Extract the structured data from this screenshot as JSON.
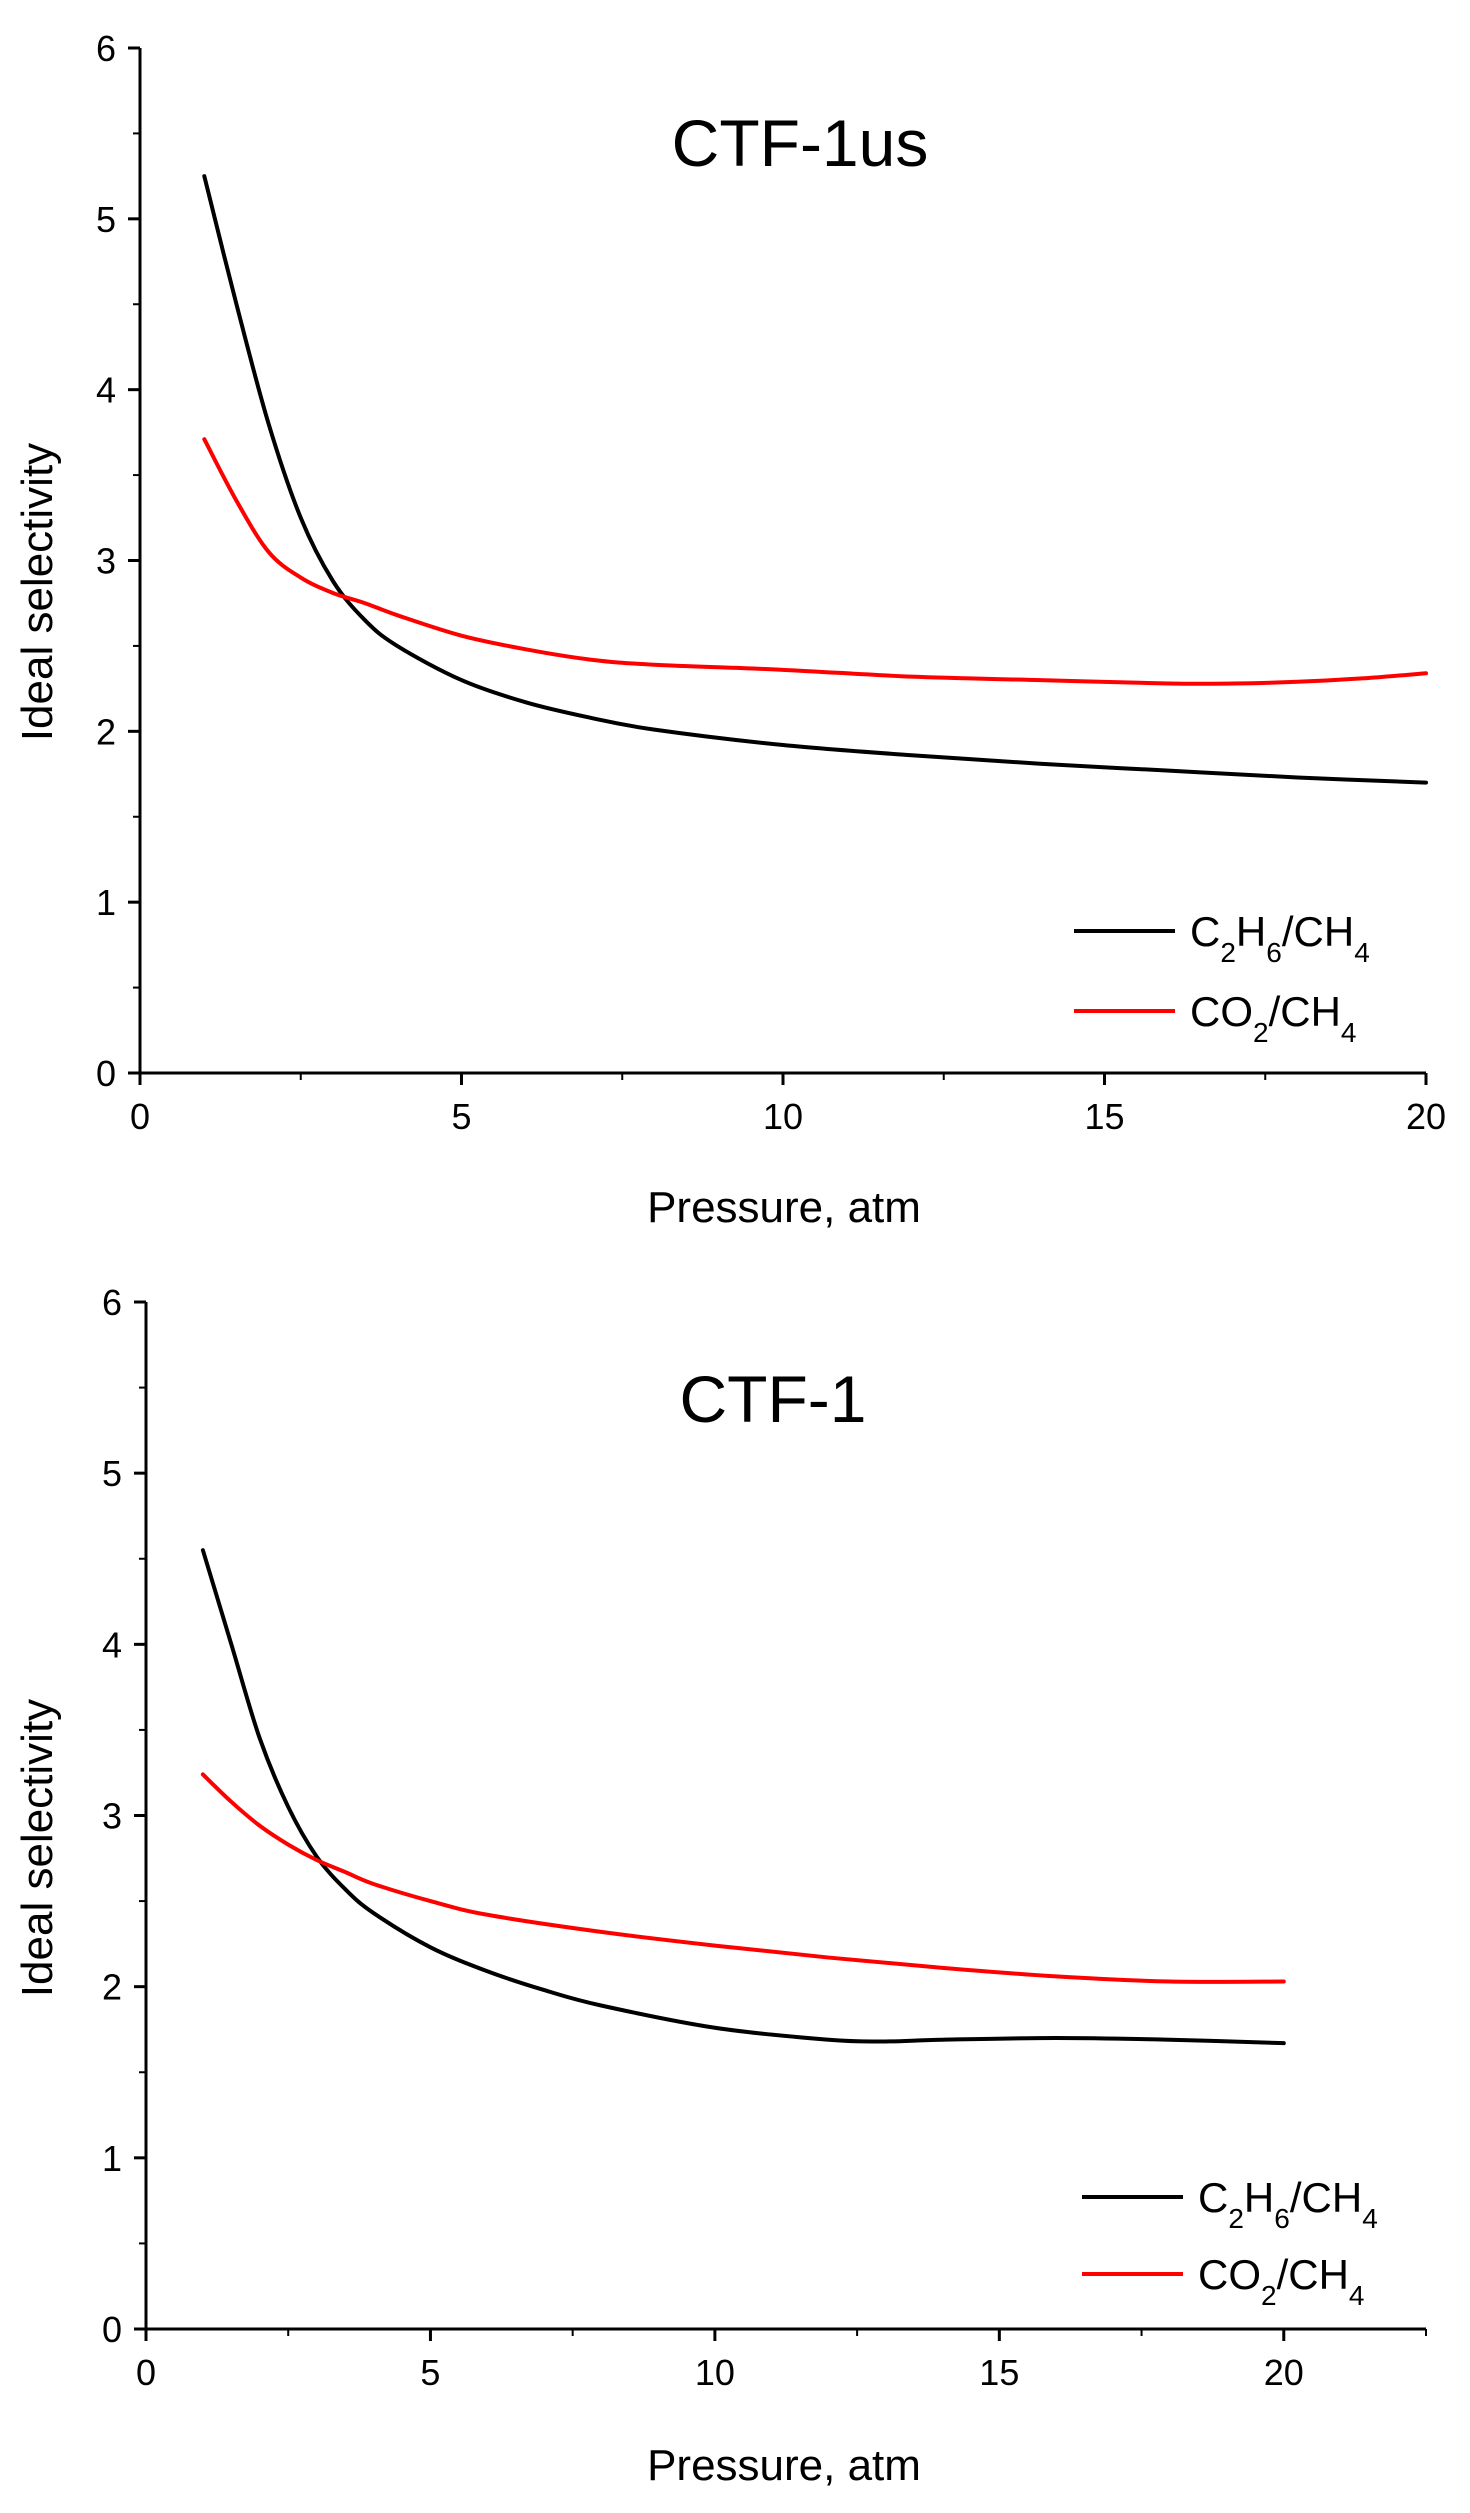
{
  "chart_data": [
    {
      "type": "line",
      "title": "CTF-1us",
      "xlabel": "Pressure, atm",
      "ylabel": "Ideal selectivity",
      "xlim": [
        0,
        20
      ],
      "ylim": [
        0,
        6
      ],
      "xticks": [
        0,
        5,
        10,
        15,
        20
      ],
      "yticks": [
        0,
        1,
        2,
        3,
        4,
        5,
        6
      ],
      "legend_position": "bottom-right",
      "series": [
        {
          "name": "C2H6/CH4",
          "label_main": "C",
          "sub1": "2",
          "label_mid": "H",
          "sub2": "6",
          "label_tail": "/CH",
          "sub3": "4",
          "color": "#000000",
          "x": [
            1,
            1.5,
            2,
            2.5,
            3,
            3.5,
            4,
            5,
            6,
            7,
            8,
            10,
            12,
            14,
            16,
            18,
            20
          ],
          "values": [
            5.25,
            4.5,
            3.8,
            3.25,
            2.88,
            2.65,
            2.5,
            2.3,
            2.17,
            2.08,
            2.01,
            1.92,
            1.86,
            1.81,
            1.77,
            1.73,
            1.7
          ]
        },
        {
          "name": "CO2/CH4",
          "label_main": "CO",
          "sub1": "2",
          "label_mid": "/CH",
          "sub2": "4",
          "color": "#ff0000",
          "x": [
            1,
            1.5,
            2,
            2.5,
            3,
            3.5,
            4,
            5,
            6,
            7,
            8,
            10,
            12,
            14,
            16,
            17,
            18,
            19,
            20
          ],
          "values": [
            3.71,
            3.35,
            3.05,
            2.9,
            2.81,
            2.75,
            2.68,
            2.56,
            2.48,
            2.42,
            2.39,
            2.36,
            2.32,
            2.3,
            2.28,
            2.28,
            2.29,
            2.31,
            2.34
          ]
        }
      ]
    },
    {
      "type": "line",
      "title": "CTF-1",
      "xlabel": "Pressure, atm",
      "ylabel": "Ideal selectivity",
      "xlim": [
        0,
        22.5
      ],
      "ylim": [
        0,
        6
      ],
      "xticks": [
        0,
        5,
        10,
        15,
        20
      ],
      "yticks": [
        0,
        1,
        2,
        3,
        4,
        5,
        6
      ],
      "legend_position": "bottom-right",
      "series": [
        {
          "name": "C2H6/CH4",
          "label_main": "C",
          "sub1": "2",
          "label_mid": "H",
          "sub2": "6",
          "label_tail": "/CH",
          "sub3": "4",
          "color": "#000000",
          "x": [
            1,
            1.5,
            2,
            2.5,
            3,
            3.5,
            4,
            5,
            6,
            7,
            8,
            10,
            12,
            13,
            14,
            16,
            18,
            20
          ],
          "values": [
            4.55,
            4.0,
            3.45,
            3.05,
            2.76,
            2.57,
            2.43,
            2.23,
            2.09,
            1.98,
            1.89,
            1.76,
            1.69,
            1.68,
            1.69,
            1.7,
            1.69,
            1.67
          ]
        },
        {
          "name": "CO2/CH4",
          "label_main": "CO",
          "sub1": "2",
          "label_mid": "/CH",
          "sub2": "4",
          "color": "#ff0000",
          "x": [
            1,
            1.5,
            2,
            2.5,
            3,
            3.5,
            4,
            5,
            6,
            8,
            10,
            12,
            14,
            16,
            18,
            20
          ],
          "values": [
            3.24,
            3.08,
            2.94,
            2.83,
            2.74,
            2.67,
            2.6,
            2.5,
            2.42,
            2.32,
            2.24,
            2.17,
            2.11,
            2.06,
            2.03,
            2.03
          ]
        }
      ]
    }
  ]
}
